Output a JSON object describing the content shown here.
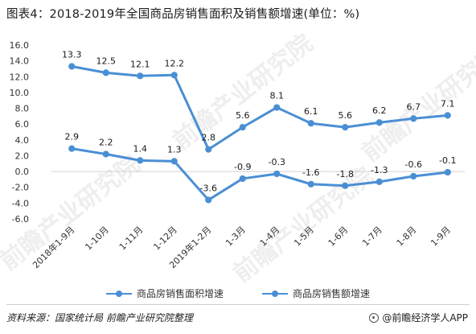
{
  "title": "图表4：2018-2019年全国商品房销售面积及销售额增速(单位：%)",
  "chart_data": {
    "type": "line",
    "categories": [
      "2018年1-9月",
      "1-10月",
      "1-11月",
      "1-12月",
      "2019年1-2月",
      "1-3月",
      "1-4月",
      "1-5月",
      "1-6月",
      "1-7月",
      "1-8月",
      "1-9月"
    ],
    "series": [
      {
        "name": "商品房销售面积增速",
        "values": [
          2.9,
          2.2,
          1.4,
          1.3,
          -3.6,
          -0.9,
          -0.3,
          -1.6,
          -1.8,
          -1.3,
          -0.6,
          -0.1
        ]
      },
      {
        "name": "商品房销售额增速",
        "values": [
          13.3,
          12.5,
          12.1,
          12.2,
          2.8,
          5.6,
          8.1,
          6.1,
          5.6,
          6.2,
          6.7,
          7.1
        ]
      }
    ],
    "ylim": [
      -6.0,
      16.0
    ],
    "yticks": [
      "16.0",
      "14.0",
      "12.0",
      "10.0",
      "8.0",
      "6.0",
      "4.0",
      "2.0",
      "0.0",
      "-2.0",
      "-4.0",
      "-6.0"
    ],
    "xlabel": "",
    "ylabel": "",
    "grid": false,
    "legend_position": "bottom",
    "color": "#4a8fd4"
  },
  "watermarks": [
    "前瞻产业研究院",
    "前瞻产业研究院",
    "前瞻产业研究院",
    "前瞻产业研究院"
  ],
  "footer": {
    "source": "资料来源：国家统计局 前瞻产业研究院整理",
    "brand": "@前瞻经济学人APP"
  }
}
